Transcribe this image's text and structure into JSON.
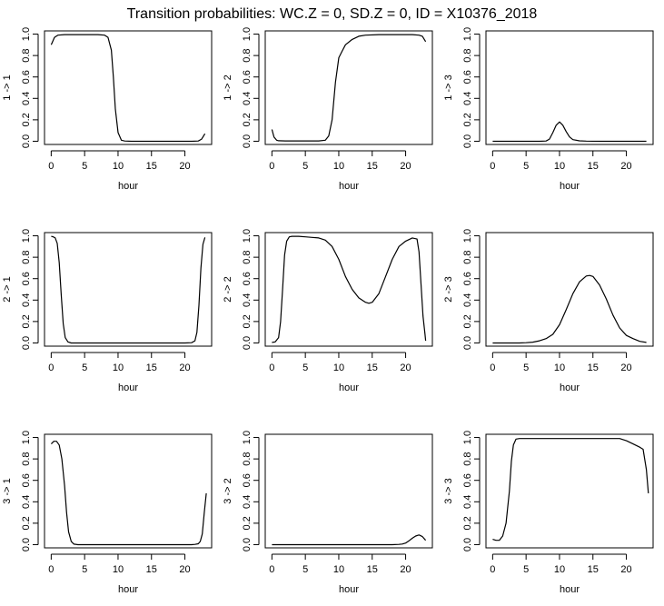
{
  "title": "Transition probabilities: WC.Z = 0, SD.Z = 0, ID = X10376_2018",
  "chart_data": [
    {
      "type": "line",
      "ylabel": "1 -> 1",
      "xlabel": "hour",
      "xlim": [
        -1,
        24
      ],
      "ylim": [
        -0.03,
        1.03
      ],
      "xticks": [
        0,
        5,
        10,
        15,
        20
      ],
      "yticks": [
        0.0,
        0.2,
        0.4,
        0.6,
        0.8,
        1.0
      ],
      "x": [
        0,
        0.5,
        1,
        2,
        3,
        4,
        5,
        6,
        7,
        8,
        8.5,
        9,
        9.3,
        9.6,
        10,
        10.5,
        11,
        12,
        14,
        16,
        18,
        20,
        21,
        22,
        22.5,
        23
      ],
      "y": [
        0.9,
        0.97,
        0.99,
        0.995,
        0.995,
        0.995,
        0.995,
        0.995,
        0.995,
        0.99,
        0.97,
        0.85,
        0.6,
        0.3,
        0.08,
        0.01,
        0.002,
        0.0,
        0.0,
        0.0,
        0.0,
        0.0,
        0.0,
        0.002,
        0.02,
        0.07
      ]
    },
    {
      "type": "line",
      "ylabel": "1 -> 2",
      "xlabel": "hour",
      "xlim": [
        -1,
        24
      ],
      "ylim": [
        -0.03,
        1.03
      ],
      "xticks": [
        0,
        5,
        10,
        15,
        20
      ],
      "yticks": [
        0.0,
        0.2,
        0.4,
        0.6,
        0.8,
        1.0
      ],
      "x": [
        0,
        0.3,
        0.7,
        1,
        2,
        3,
        4,
        5,
        6,
        7,
        8,
        8.5,
        9,
        9.5,
        10,
        10.5,
        11,
        12,
        13,
        14,
        16,
        18,
        20,
        21,
        22,
        22.5,
        23
      ],
      "y": [
        0.11,
        0.04,
        0.01,
        0.005,
        0.003,
        0.003,
        0.003,
        0.003,
        0.003,
        0.003,
        0.01,
        0.05,
        0.2,
        0.55,
        0.78,
        0.84,
        0.9,
        0.95,
        0.98,
        0.99,
        0.995,
        0.995,
        0.995,
        0.995,
        0.99,
        0.98,
        0.93
      ]
    },
    {
      "type": "line",
      "ylabel": "1 -> 3",
      "xlabel": "hour",
      "xlim": [
        -1,
        24
      ],
      "ylim": [
        -0.03,
        1.03
      ],
      "xticks": [
        0,
        5,
        10,
        15,
        20
      ],
      "yticks": [
        0.0,
        0.2,
        0.4,
        0.6,
        0.8,
        1.0
      ],
      "x": [
        0,
        2,
        4,
        6,
        7,
        8,
        8.5,
        9,
        9.5,
        10,
        10.5,
        11,
        11.5,
        12,
        13,
        14,
        16,
        18,
        20,
        23
      ],
      "y": [
        0.0,
        0.0,
        0.0,
        0.0,
        0.0,
        0.002,
        0.02,
        0.08,
        0.15,
        0.18,
        0.15,
        0.09,
        0.04,
        0.015,
        0.004,
        0.001,
        0.0,
        0.0,
        0.0,
        0.0
      ]
    },
    {
      "type": "line",
      "ylabel": "2 -> 1",
      "xlabel": "hour",
      "xlim": [
        -1,
        24
      ],
      "ylim": [
        -0.03,
        1.03
      ],
      "xticks": [
        0,
        5,
        10,
        15,
        20
      ],
      "yticks": [
        0.0,
        0.2,
        0.4,
        0.6,
        0.8,
        1.0
      ],
      "x": [
        0,
        0.3,
        0.6,
        0.9,
        1.2,
        1.5,
        1.8,
        2.1,
        2.5,
        3,
        4,
        6,
        10,
        15,
        20,
        21,
        21.5,
        21.8,
        22.1,
        22.4,
        22.7,
        23
      ],
      "y": [
        0.995,
        0.99,
        0.98,
        0.93,
        0.75,
        0.45,
        0.18,
        0.05,
        0.01,
        0.0,
        0.0,
        0.0,
        0.0,
        0.0,
        0.0,
        0.002,
        0.02,
        0.1,
        0.35,
        0.7,
        0.92,
        0.985
      ]
    },
    {
      "type": "line",
      "ylabel": "2 -> 2",
      "xlabel": "hour",
      "xlim": [
        -1,
        24
      ],
      "ylim": [
        -0.03,
        1.03
      ],
      "xticks": [
        0,
        5,
        10,
        15,
        20
      ],
      "yticks": [
        0.0,
        0.2,
        0.4,
        0.6,
        0.8,
        1.0
      ],
      "x": [
        0,
        0.5,
        1,
        1.3,
        1.6,
        1.9,
        2.2,
        2.6,
        3,
        4,
        5,
        6,
        7,
        8,
        9,
        10,
        11,
        12,
        13,
        14,
        14.5,
        15,
        16,
        17,
        18,
        19,
        20,
        21,
        21.7,
        22,
        22.3,
        22.6,
        22.9,
        23
      ],
      "y": [
        0.005,
        0.01,
        0.05,
        0.2,
        0.5,
        0.82,
        0.95,
        0.99,
        0.995,
        0.995,
        0.99,
        0.985,
        0.98,
        0.96,
        0.9,
        0.78,
        0.62,
        0.5,
        0.42,
        0.38,
        0.37,
        0.38,
        0.46,
        0.62,
        0.78,
        0.9,
        0.95,
        0.98,
        0.97,
        0.85,
        0.55,
        0.25,
        0.08,
        0.02
      ]
    },
    {
      "type": "line",
      "ylabel": "2 -> 3",
      "xlabel": "hour",
      "xlim": [
        -1,
        24
      ],
      "ylim": [
        -0.03,
        1.03
      ],
      "xticks": [
        0,
        5,
        10,
        15,
        20
      ],
      "yticks": [
        0.0,
        0.2,
        0.4,
        0.6,
        0.8,
        1.0
      ],
      "x": [
        0,
        2,
        4,
        5,
        6,
        7,
        8,
        9,
        10,
        11,
        12,
        13,
        14,
        14.5,
        15,
        16,
        17,
        18,
        19,
        20,
        21,
        22,
        23
      ],
      "y": [
        0.0,
        0.0,
        0.0,
        0.002,
        0.007,
        0.02,
        0.04,
        0.08,
        0.17,
        0.31,
        0.46,
        0.57,
        0.625,
        0.63,
        0.62,
        0.54,
        0.41,
        0.26,
        0.14,
        0.07,
        0.04,
        0.015,
        0.005
      ]
    },
    {
      "type": "line",
      "ylabel": "3 -> 1",
      "xlabel": "hour",
      "xlim": [
        -1,
        24
      ],
      "ylim": [
        -0.03,
        1.03
      ],
      "xticks": [
        0,
        5,
        10,
        15,
        20
      ],
      "yticks": [
        0.0,
        0.2,
        0.4,
        0.6,
        0.8,
        1.0
      ],
      "x": [
        0,
        0.4,
        0.8,
        1.2,
        1.6,
        2,
        2.3,
        2.6,
        3,
        3.4,
        4,
        6,
        10,
        15,
        20,
        21,
        21.5,
        22,
        22.3,
        22.6,
        22.9,
        23.2
      ],
      "y": [
        0.94,
        0.965,
        0.965,
        0.93,
        0.8,
        0.55,
        0.3,
        0.12,
        0.03,
        0.005,
        0.0,
        0.0,
        0.0,
        0.0,
        0.0,
        0.0,
        0.002,
        0.008,
        0.03,
        0.1,
        0.3,
        0.48
      ]
    },
    {
      "type": "line",
      "ylabel": "3 -> 2",
      "xlabel": "hour",
      "xlim": [
        -1,
        24
      ],
      "ylim": [
        -0.03,
        1.03
      ],
      "xticks": [
        0,
        5,
        10,
        15,
        20
      ],
      "yticks": [
        0.0,
        0.2,
        0.4,
        0.6,
        0.8,
        1.0
      ],
      "x": [
        0,
        2,
        5,
        10,
        15,
        18,
        19,
        19.5,
        20,
        20.5,
        21,
        21.5,
        22,
        22.5,
        23
      ],
      "y": [
        0.0,
        0.0,
        0.0,
        0.0,
        0.0,
        0.0,
        0.002,
        0.006,
        0.015,
        0.035,
        0.06,
        0.08,
        0.09,
        0.075,
        0.04
      ]
    },
    {
      "type": "line",
      "ylabel": "3 -> 3",
      "xlabel": "hour",
      "xlim": [
        -1,
        24
      ],
      "ylim": [
        -0.03,
        1.03
      ],
      "xticks": [
        0,
        5,
        10,
        15,
        20
      ],
      "yticks": [
        0.0,
        0.2,
        0.4,
        0.6,
        0.8,
        1.0
      ],
      "x": [
        0,
        0.5,
        1,
        1.5,
        2,
        2.5,
        2.8,
        3.1,
        3.5,
        4,
        5,
        8,
        10,
        15,
        19,
        20,
        21,
        22,
        22.5,
        23,
        23.3
      ],
      "y": [
        0.05,
        0.04,
        0.04,
        0.08,
        0.2,
        0.5,
        0.78,
        0.93,
        0.985,
        0.99,
        0.99,
        0.99,
        0.99,
        0.99,
        0.99,
        0.97,
        0.94,
        0.91,
        0.89,
        0.7,
        0.48
      ]
    }
  ]
}
